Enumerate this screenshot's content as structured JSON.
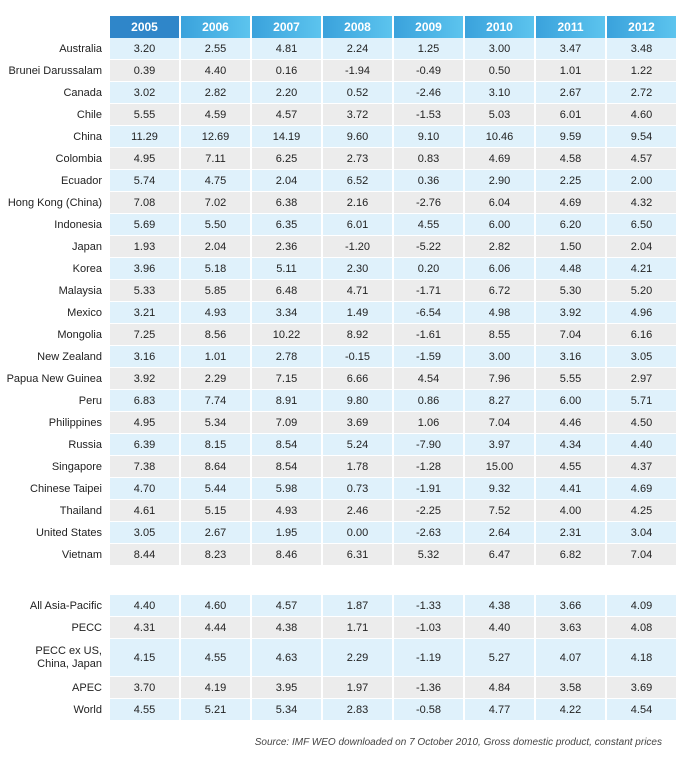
{
  "years": [
    "2005",
    "2006",
    "2007",
    "2008",
    "2009",
    "2010",
    "2011",
    "2012"
  ],
  "rows": [
    {
      "label": "Australia",
      "values": [
        "3.20",
        "2.55",
        "4.81",
        "2.24",
        "1.25",
        "3.00",
        "3.47",
        "3.48"
      ]
    },
    {
      "label": "Brunei Darussalam",
      "values": [
        "0.39",
        "4.40",
        "0.16",
        "-1.94",
        "-0.49",
        "0.50",
        "1.01",
        "1.22"
      ]
    },
    {
      "label": "Canada",
      "values": [
        "3.02",
        "2.82",
        "2.20",
        "0.52",
        "-2.46",
        "3.10",
        "2.67",
        "2.72"
      ]
    },
    {
      "label": "Chile",
      "values": [
        "5.55",
        "4.59",
        "4.57",
        "3.72",
        "-1.53",
        "5.03",
        "6.01",
        "4.60"
      ]
    },
    {
      "label": "China",
      "values": [
        "11.29",
        "12.69",
        "14.19",
        "9.60",
        "9.10",
        "10.46",
        "9.59",
        "9.54"
      ]
    },
    {
      "label": "Colombia",
      "values": [
        "4.95",
        "7.11",
        "6.25",
        "2.73",
        "0.83",
        "4.69",
        "4.58",
        "4.57"
      ]
    },
    {
      "label": "Ecuador",
      "values": [
        "5.74",
        "4.75",
        "2.04",
        "6.52",
        "0.36",
        "2.90",
        "2.25",
        "2.00"
      ]
    },
    {
      "label": "Hong Kong (China)",
      "values": [
        "7.08",
        "7.02",
        "6.38",
        "2.16",
        "-2.76",
        "6.04",
        "4.69",
        "4.32"
      ]
    },
    {
      "label": "Indonesia",
      "values": [
        "5.69",
        "5.50",
        "6.35",
        "6.01",
        "4.55",
        "6.00",
        "6.20",
        "6.50"
      ]
    },
    {
      "label": "Japan",
      "values": [
        "1.93",
        "2.04",
        "2.36",
        "-1.20",
        "-5.22",
        "2.82",
        "1.50",
        "2.04"
      ]
    },
    {
      "label": "Korea",
      "values": [
        "3.96",
        "5.18",
        "5.11",
        "2.30",
        "0.20",
        "6.06",
        "4.48",
        "4.21"
      ]
    },
    {
      "label": "Malaysia",
      "values": [
        "5.33",
        "5.85",
        "6.48",
        "4.71",
        "-1.71",
        "6.72",
        "5.30",
        "5.20"
      ]
    },
    {
      "label": "Mexico",
      "values": [
        "3.21",
        "4.93",
        "3.34",
        "1.49",
        "-6.54",
        "4.98",
        "3.92",
        "4.96"
      ]
    },
    {
      "label": "Mongolia",
      "values": [
        "7.25",
        "8.56",
        "10.22",
        "8.92",
        "-1.61",
        "8.55",
        "7.04",
        "6.16"
      ]
    },
    {
      "label": "New Zealand",
      "values": [
        "3.16",
        "1.01",
        "2.78",
        "-0.15",
        "-1.59",
        "3.00",
        "3.16",
        "3.05"
      ]
    },
    {
      "label": "Papua New Guinea",
      "values": [
        "3.92",
        "2.29",
        "7.15",
        "6.66",
        "4.54",
        "7.96",
        "5.55",
        "2.97"
      ]
    },
    {
      "label": "Peru",
      "values": [
        "6.83",
        "7.74",
        "8.91",
        "9.80",
        "0.86",
        "8.27",
        "6.00",
        "5.71"
      ]
    },
    {
      "label": "Philippines",
      "values": [
        "4.95",
        "5.34",
        "7.09",
        "3.69",
        "1.06",
        "7.04",
        "4.46",
        "4.50"
      ]
    },
    {
      "label": "Russia",
      "values": [
        "6.39",
        "8.15",
        "8.54",
        "5.24",
        "-7.90",
        "3.97",
        "4.34",
        "4.40"
      ]
    },
    {
      "label": "Singapore",
      "values": [
        "7.38",
        "8.64",
        "8.54",
        "1.78",
        "-1.28",
        "15.00",
        "4.55",
        "4.37"
      ]
    },
    {
      "label": "Chinese Taipei",
      "values": [
        "4.70",
        "5.44",
        "5.98",
        "0.73",
        "-1.91",
        "9.32",
        "4.41",
        "4.69"
      ]
    },
    {
      "label": "Thailand",
      "values": [
        "4.61",
        "5.15",
        "4.93",
        "2.46",
        "-2.25",
        "7.52",
        "4.00",
        "4.25"
      ]
    },
    {
      "label": "United States",
      "values": [
        "3.05",
        "2.67",
        "1.95",
        "0.00",
        "-2.63",
        "2.64",
        "2.31",
        "3.04"
      ]
    },
    {
      "label": "Vietnam",
      "values": [
        "8.44",
        "8.23",
        "8.46",
        "6.31",
        "5.32",
        "6.47",
        "6.82",
        "7.04"
      ]
    }
  ],
  "aggregates": [
    {
      "label": "All Asia-Pacific",
      "values": [
        "4.40",
        "4.60",
        "4.57",
        "1.87",
        "-1.33",
        "4.38",
        "3.66",
        "4.09"
      ]
    },
    {
      "label": "PECC",
      "values": [
        "4.31",
        "4.44",
        "4.38",
        "1.71",
        "-1.03",
        "4.40",
        "3.63",
        "4.08"
      ]
    },
    {
      "label": "PECC ex US, China, Japan",
      "values": [
        "4.15",
        "4.55",
        "4.63",
        "2.29",
        "-1.19",
        "5.27",
        "4.07",
        "4.18"
      ]
    },
    {
      "label": "APEC",
      "values": [
        "3.70",
        "4.19",
        "3.95",
        "1.97",
        "-1.36",
        "4.84",
        "3.58",
        "3.69"
      ]
    },
    {
      "label": "World",
      "values": [
        "4.55",
        "5.21",
        "5.34",
        "2.83",
        "-0.58",
        "4.77",
        "4.22",
        "4.54"
      ]
    }
  ],
  "source": "Source: IMF WEO downloaded on 7 October 2010, Gross domestic product, constant prices",
  "colors": {
    "header_first": "#2f86c9",
    "header": "#3aa2dc",
    "row_blue": "#dff1fb",
    "row_grey": "#ececec"
  }
}
